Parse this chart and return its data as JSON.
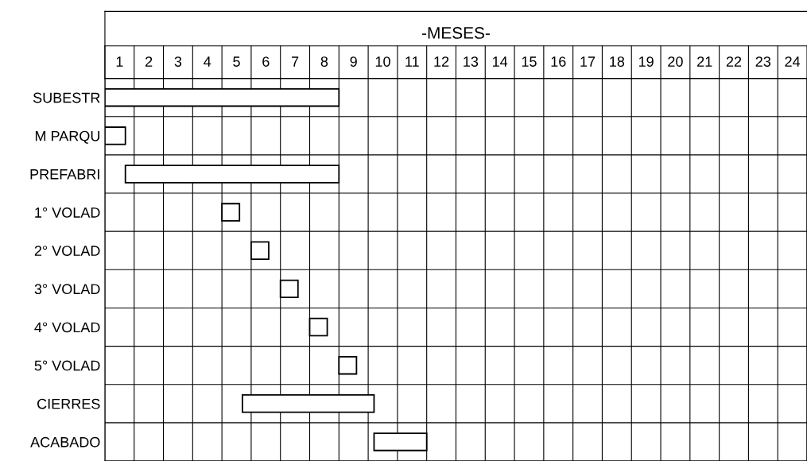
{
  "chart_data": {
    "type": "bar",
    "orientation": "horizontal",
    "title": "-MESES-",
    "categories": [
      "SUBESTR",
      "M PARQU",
      "PREFABRI",
      "1° VOLAD",
      "2° VOLAD",
      "3° VOLAD",
      "4° VOLAD",
      "5° VOLAD",
      "CIERRES",
      "ACABADO"
    ],
    "base": [
      0,
      0,
      0.7,
      4.0,
      5.0,
      6.0,
      7.0,
      8.0,
      4.7,
      9.2
    ],
    "values": [
      8.0,
      0.7,
      7.3,
      0.6,
      0.6,
      0.6,
      0.6,
      0.6,
      4.5,
      1.8
    ],
    "color": "#ffffff",
    "xlim": [
      0,
      24
    ],
    "xticks": [
      {
        "value": 0.5,
        "label": "1"
      },
      {
        "value": 1.5,
        "label": "2"
      },
      {
        "value": 2.5,
        "label": "3"
      },
      {
        "value": 3.5,
        "label": "4"
      },
      {
        "value": 4.5,
        "label": "5"
      },
      {
        "value": 5.5,
        "label": "6"
      },
      {
        "value": 6.5,
        "label": "7"
      },
      {
        "value": 7.5,
        "label": "8"
      },
      {
        "value": 8.5,
        "label": "9"
      },
      {
        "value": 9.5,
        "label": "10"
      },
      {
        "value": 10.5,
        "label": "11"
      },
      {
        "value": 11.5,
        "label": "12"
      },
      {
        "value": 12.5,
        "label": "13"
      },
      {
        "value": 13.5,
        "label": "14"
      },
      {
        "value": 14.5,
        "label": "15"
      },
      {
        "value": 15.5,
        "label": "16"
      },
      {
        "value": 16.5,
        "label": "17"
      },
      {
        "value": 17.5,
        "label": "18"
      },
      {
        "value": 18.5,
        "label": "19"
      },
      {
        "value": 19.5,
        "label": "20"
      },
      {
        "value": 20.5,
        "label": "21"
      },
      {
        "value": 21.5,
        "label": "22"
      },
      {
        "value": 22.5,
        "label": "23"
      },
      {
        "value": 23.5,
        "label": "24"
      }
    ],
    "grid": true
  }
}
